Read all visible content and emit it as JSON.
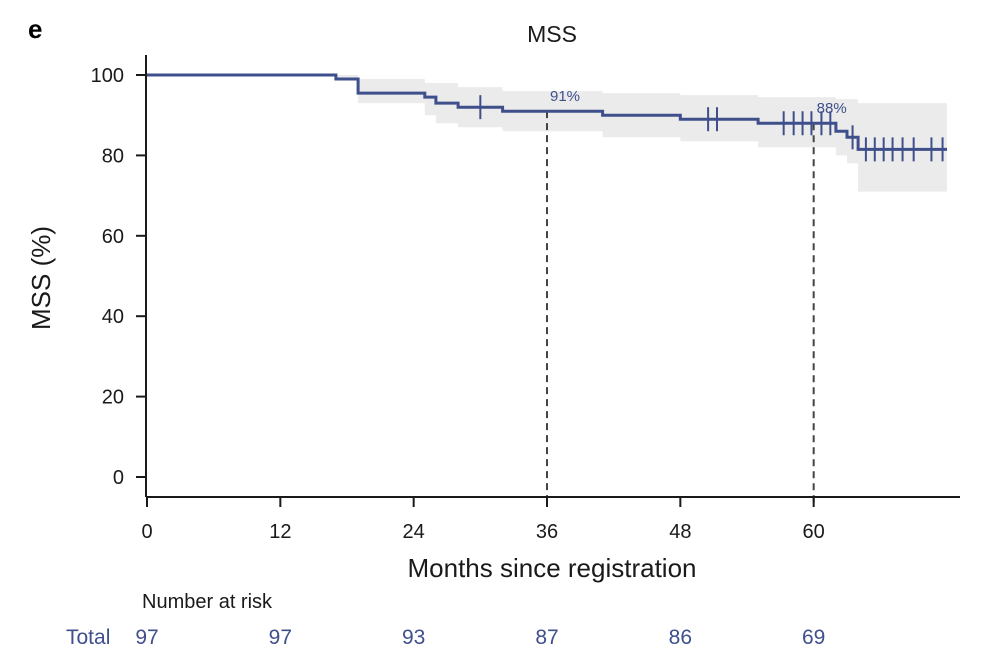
{
  "panel_label": "e",
  "colors": {
    "line": "#3f4f8c",
    "ci_band": "#ebebeb",
    "axis": "#1a1a1a",
    "reference": "#444444"
  },
  "chart_data": {
    "type": "line",
    "title": "MSS",
    "xlabel": "Months since registration",
    "ylabel": "MSS (%)",
    "xlim": [
      0,
      72
    ],
    "ylim": [
      0,
      100
    ],
    "x_ticks": [
      0,
      12,
      24,
      36,
      48,
      60
    ],
    "y_ticks": [
      0,
      20,
      40,
      60,
      80,
      100
    ],
    "grid": false,
    "legend": "none",
    "series": [
      {
        "step_curve": [
          [
            0,
            100
          ],
          [
            17,
            100
          ],
          [
            17,
            99
          ],
          [
            19,
            99
          ],
          [
            19,
            95.5
          ],
          [
            25,
            95.5
          ],
          [
            25,
            94.5
          ],
          [
            26,
            94.5
          ],
          [
            26,
            93
          ],
          [
            28,
            93
          ],
          [
            28,
            92
          ],
          [
            32,
            92
          ],
          [
            32,
            91
          ],
          [
            41,
            91
          ],
          [
            41,
            90
          ],
          [
            48,
            90
          ],
          [
            48,
            89
          ],
          [
            55,
            89
          ],
          [
            55,
            88
          ],
          [
            62,
            88
          ],
          [
            62,
            86
          ],
          [
            63,
            86
          ],
          [
            63,
            84.5
          ],
          [
            64,
            84.5
          ],
          [
            64,
            81.5
          ],
          [
            72,
            81.5
          ]
        ],
        "ci_upper": [
          [
            0,
            100
          ],
          [
            17,
            100
          ],
          [
            19,
            99
          ],
          [
            25,
            98
          ],
          [
            28,
            97
          ],
          [
            32,
            96
          ],
          [
            41,
            95.5
          ],
          [
            48,
            95
          ],
          [
            55,
            94.5
          ],
          [
            62,
            94
          ],
          [
            64,
            93
          ],
          [
            72,
            93
          ]
        ],
        "ci_lower": [
          [
            0,
            100
          ],
          [
            17,
            99
          ],
          [
            19,
            93
          ],
          [
            25,
            90
          ],
          [
            26,
            88
          ],
          [
            28,
            87
          ],
          [
            32,
            86
          ],
          [
            41,
            84.5
          ],
          [
            48,
            83.5
          ],
          [
            55,
            82
          ],
          [
            62,
            80
          ],
          [
            63,
            78
          ],
          [
            64,
            71
          ],
          [
            72,
            71
          ]
        ],
        "censor_marks": [
          [
            30,
            92
          ],
          [
            50.5,
            89
          ],
          [
            51.3,
            89
          ],
          [
            57.3,
            88
          ],
          [
            58.2,
            88
          ],
          [
            59,
            88
          ],
          [
            59.8,
            88
          ],
          [
            60.7,
            88
          ],
          [
            61.5,
            88
          ],
          [
            63.5,
            84.5
          ],
          [
            64.7,
            81.5
          ],
          [
            65.5,
            81.5
          ],
          [
            66.3,
            81.5
          ],
          [
            67.1,
            81.5
          ],
          [
            68,
            81.5
          ],
          [
            69,
            81.5
          ],
          [
            70.6,
            81.5
          ],
          [
            71.6,
            81.5
          ]
        ]
      }
    ],
    "reference_lines": [
      {
        "x": 36,
        "y": 91,
        "label": "91%"
      },
      {
        "x": 60,
        "y": 88,
        "label": "88%"
      }
    ],
    "risk_table": {
      "title": "Number at risk",
      "row_label": "Total",
      "times": [
        0,
        12,
        24,
        36,
        48,
        60
      ],
      "values": [
        "97",
        "97",
        "93",
        "87",
        "86",
        "69"
      ]
    }
  }
}
